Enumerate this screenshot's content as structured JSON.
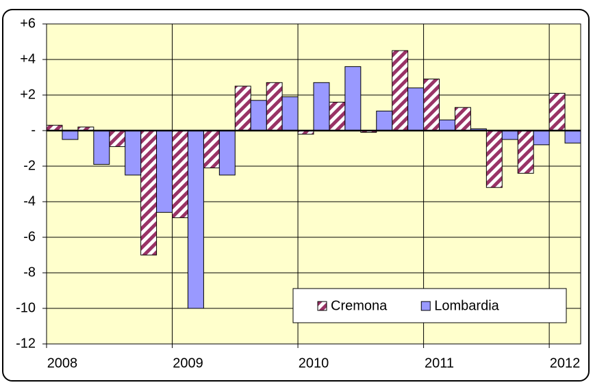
{
  "chart_data": {
    "type": "bar",
    "categories": [
      "2008",
      null,
      null,
      null,
      "2009",
      null,
      null,
      null,
      "2010",
      null,
      null,
      null,
      "2011",
      null,
      null,
      null,
      "2012"
    ],
    "series": [
      {
        "name": "Cremona",
        "color": "#993366",
        "hatch": true,
        "values": [
          0.3,
          0.2,
          -0.9,
          -7.0,
          -4.9,
          -2.1,
          2.5,
          2.7,
          -0.2,
          1.6,
          -0.1,
          4.5,
          2.9,
          1.3,
          -3.2,
          -2.4,
          2.1
        ]
      },
      {
        "name": "Lombardia",
        "color": "#9999ff",
        "values": [
          -0.5,
          -1.9,
          -2.5,
          -4.6,
          -10.0,
          -2.5,
          1.7,
          1.9,
          2.7,
          3.6,
          1.1,
          2.4,
          0.6,
          0.1,
          -0.5,
          -0.8,
          -0.7
        ]
      }
    ],
    "ylim": [
      -12,
      6
    ],
    "yticks": [
      -12,
      -10,
      -8,
      -6,
      -4,
      -2,
      {
        "value": 0,
        "label": "-"
      },
      {
        "value": 2,
        "label": "+2"
      },
      {
        "value": 4,
        "label": "+4"
      },
      {
        "value": 6,
        "label": "+6"
      }
    ],
    "grid": true,
    "legend": "lower right",
    "background": "#ffffcc"
  }
}
